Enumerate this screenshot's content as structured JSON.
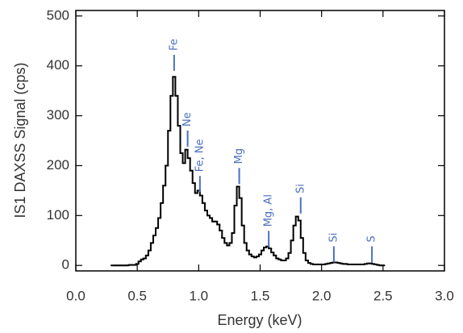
{
  "chart_data": {
    "type": "line",
    "drawstyle": "steps-mid",
    "xlabel": "Energy (keV)",
    "ylabel": "IS1 DAXSS Signal (cps)",
    "xlim": [
      0,
      3
    ],
    "ylim": [
      -11,
      511
    ],
    "xticks": [
      {
        "value": 0,
        "label": "0.0"
      },
      {
        "value": 0.5,
        "label": "0.5"
      },
      {
        "value": 1,
        "label": "1.0"
      },
      {
        "value": 1.5,
        "label": "1.5"
      },
      {
        "value": 2,
        "label": "2.0"
      },
      {
        "value": 2.5,
        "label": "2.5"
      },
      {
        "value": 3,
        "label": "3.0"
      }
    ],
    "yticks": [
      0,
      100,
      200,
      300,
      400,
      500
    ],
    "x": [
      0.3,
      0.32,
      0.34,
      0.36,
      0.38,
      0.4,
      0.42,
      0.44,
      0.46,
      0.48,
      0.5,
      0.52,
      0.54,
      0.56,
      0.58,
      0.6,
      0.62,
      0.64,
      0.66,
      0.68,
      0.7,
      0.72,
      0.74,
      0.76,
      0.78,
      0.8,
      0.82,
      0.84,
      0.86,
      0.88,
      0.9,
      0.92,
      0.94,
      0.96,
      0.98,
      1.0,
      1.02,
      1.04,
      1.06,
      1.08,
      1.1,
      1.12,
      1.14,
      1.16,
      1.18,
      1.2,
      1.22,
      1.24,
      1.26,
      1.28,
      1.3,
      1.32,
      1.34,
      1.36,
      1.38,
      1.4,
      1.42,
      1.44,
      1.46,
      1.48,
      1.5,
      1.52,
      1.54,
      1.56,
      1.58,
      1.6,
      1.62,
      1.64,
      1.66,
      1.68,
      1.7,
      1.72,
      1.74,
      1.76,
      1.78,
      1.8,
      1.82,
      1.84,
      1.86,
      1.88,
      1.9,
      1.92,
      1.94,
      1.96,
      1.98,
      2.0,
      2.02,
      2.04,
      2.06,
      2.08,
      2.1,
      2.12,
      2.14,
      2.16,
      2.18,
      2.2,
      2.22,
      2.24,
      2.26,
      2.28,
      2.3,
      2.32,
      2.34,
      2.36,
      2.38,
      2.4,
      2.42,
      2.44,
      2.46,
      2.48,
      2.5
    ],
    "series": [
      {
        "color": "#000000",
        "values": [
          0,
          0,
          0,
          0,
          0,
          0,
          0,
          1,
          1,
          1,
          3,
          8,
          12,
          14,
          20,
          30,
          45,
          60,
          75,
          95,
          125,
          160,
          200,
          270,
          340,
          378,
          340,
          280,
          225,
          205,
          232,
          215,
          190,
          165,
          145,
          150,
          140,
          125,
          110,
          100,
          95,
          88,
          88,
          82,
          70,
          55,
          45,
          40,
          45,
          65,
          120,
          158,
          135,
          80,
          45,
          30,
          22,
          18,
          16,
          18,
          22,
          30,
          36,
          38,
          34,
          26,
          20,
          14,
          12,
          10,
          10,
          14,
          25,
          50,
          80,
          98,
          90,
          55,
          25,
          10,
          5,
          3,
          2,
          2,
          2,
          2,
          2,
          3,
          4,
          5,
          6,
          6,
          5,
          4,
          3,
          3,
          2,
          2,
          2,
          2,
          2,
          2,
          2,
          3,
          4,
          4,
          3,
          2,
          1,
          0,
          0
        ]
      }
    ],
    "annotations": [
      {
        "text": "Fe",
        "x": 0.8,
        "y": 390
      },
      {
        "text": "Ne",
        "x": 0.91,
        "y": 238
      },
      {
        "text": "Fe, Ne",
        "x": 1.01,
        "y": 147
      },
      {
        "text": "Mg",
        "x": 1.33,
        "y": 163
      },
      {
        "text": "Mg, Al",
        "x": 1.57,
        "y": 37
      },
      {
        "text": "Si",
        "x": 1.83,
        "y": 104
      },
      {
        "text": "Si",
        "x": 2.1,
        "y": 6
      },
      {
        "text": "S",
        "x": 2.41,
        "y": 6
      }
    ]
  }
}
